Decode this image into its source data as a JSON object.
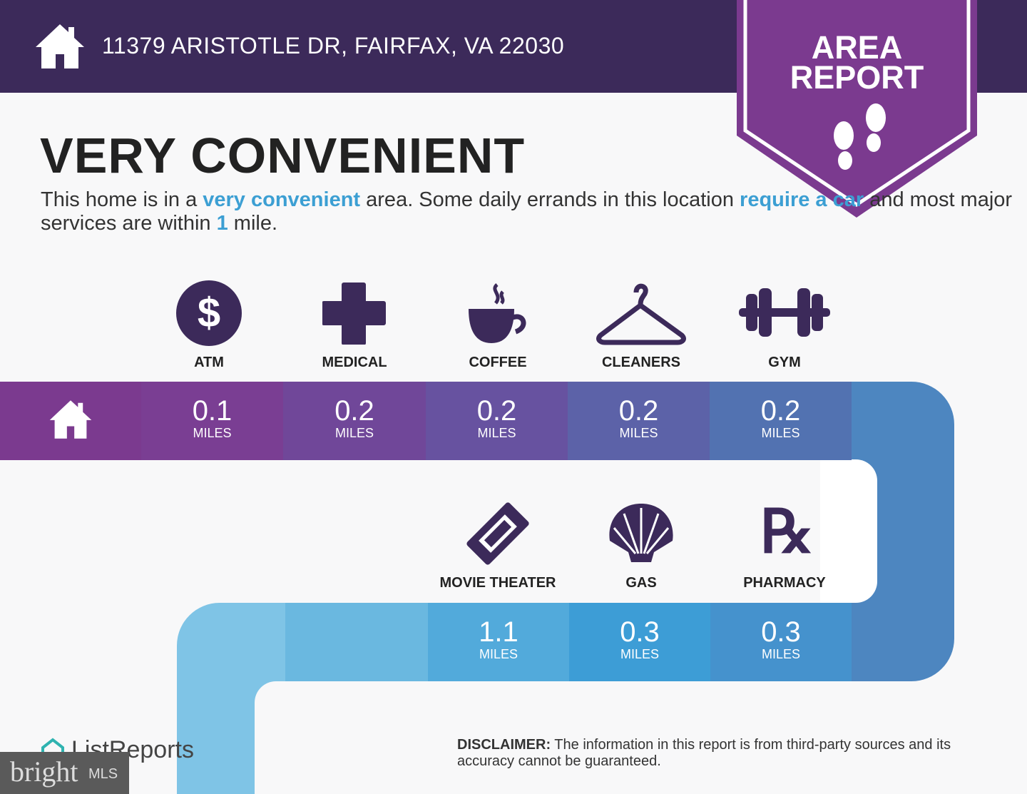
{
  "header": {
    "address": "11379 ARISTOTLE DR, FAIRFAX, VA 22030",
    "icon": "home-icon"
  },
  "badge": {
    "line1": "AREA",
    "line2": "REPORT",
    "icon": "footprints-icon"
  },
  "title": "VERY CONVENIENT",
  "description": {
    "p1": "This home is in a ",
    "h1": "very convenient",
    "p2": " area. Some daily errands in this location ",
    "h2": "require a car",
    "p3": " and most major services are within ",
    "h3": "1",
    "p4": " mile."
  },
  "row1": [
    {
      "label": "ATM",
      "value": "0.1",
      "unit": "MILES",
      "icon": "dollar-icon"
    },
    {
      "label": "MEDICAL",
      "value": "0.2",
      "unit": "MILES",
      "icon": "medical-cross-icon"
    },
    {
      "label": "COFFEE",
      "value": "0.2",
      "unit": "MILES",
      "icon": "coffee-icon"
    },
    {
      "label": "CLEANERS",
      "value": "0.2",
      "unit": "MILES",
      "icon": "hanger-icon"
    },
    {
      "label": "GYM",
      "value": "0.2",
      "unit": "MILES",
      "icon": "dumbbell-icon"
    }
  ],
  "row2": [
    {
      "label": "MOVIE THEATER",
      "value": "1.1",
      "unit": "MILES",
      "icon": "ticket-icon"
    },
    {
      "label": "GAS",
      "value": "0.3",
      "unit": "MILES",
      "icon": "shell-icon"
    },
    {
      "label": "PHARMACY",
      "value": "0.3",
      "unit": "MILES",
      "icon": "rx-icon"
    }
  ],
  "disclaimer": {
    "bold": "DISCLAIMER:",
    "text": " The information in this report is from third-party sources and its accuracy cannot be guaranteed."
  },
  "footer": {
    "listreports": "ListReports",
    "bright": "bright",
    "mls": "MLS"
  },
  "colors": {
    "header": "#3c2a5a",
    "badge": "#7b3a8f",
    "accent": "#3c9fd3"
  }
}
